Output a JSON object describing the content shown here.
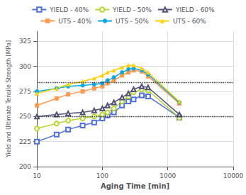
{
  "chart_data": {
    "type": "line",
    "xlabel": "Aging Time [min]",
    "ylabel": "Yield and Ultimate Tensile Strength [MPa]",
    "log": "x",
    "grid": true,
    "legend": "top",
    "xlim": [
      10,
      10000
    ],
    "ylim": [
      200,
      335
    ],
    "xticks": [
      10,
      100,
      1000,
      10000
    ],
    "yticks": [
      200,
      225,
      250,
      275,
      300,
      325
    ],
    "reference_lines": [
      {
        "y": 284,
        "line_style": "dotted"
      },
      {
        "y": 250,
        "line_style": "dotted"
      }
    ],
    "series": [
      {
        "name": "YIELD - 40%",
        "marker": "open_square",
        "x": [
          10,
          20,
          30,
          50,
          75,
          100,
          120,
          150,
          200,
          250,
          300,
          400,
          500,
          1500
        ],
        "values": [
          225,
          232,
          237,
          241,
          244,
          248,
          251,
          254,
          261,
          265,
          267,
          271,
          270,
          249
        ]
      },
      {
        "name": "YIELD - 50%",
        "marker": "open_circle",
        "x": [
          10,
          20,
          30,
          50,
          75,
          100,
          120,
          150,
          200,
          250,
          300,
          400,
          500,
          1500
        ],
        "values": [
          238,
          243,
          246,
          248,
          250,
          252,
          254,
          258,
          265,
          270,
          274,
          277,
          276,
          249
        ]
      },
      {
        "name": "YIELD - 60%",
        "marker": "open_triangle",
        "x": [
          10,
          20,
          30,
          50,
          75,
          100,
          120,
          150,
          200,
          250,
          300,
          400,
          500,
          1500
        ],
        "values": [
          250,
          252,
          253,
          254,
          256,
          258,
          261,
          264,
          269,
          273,
          277,
          280,
          279,
          252
        ]
      },
      {
        "name": "UTS - 40%",
        "marker": "square",
        "x": [
          10,
          20,
          30,
          50,
          75,
          100,
          120,
          150,
          200,
          250,
          300,
          400,
          500,
          1500
        ],
        "values": [
          261,
          268,
          272,
          275,
          278,
          280,
          283,
          286,
          291,
          294,
          296,
          295,
          290,
          263
        ]
      },
      {
        "name": "UTS - 50%",
        "marker": "circle",
        "x": [
          10,
          20,
          30,
          50,
          75,
          100,
          120,
          150,
          200,
          250,
          300,
          400,
          500,
          1500
        ],
        "values": [
          275,
          278,
          280,
          281,
          282,
          283,
          286,
          289,
          294,
          297,
          298,
          296,
          292,
          264
        ]
      },
      {
        "name": "UTS - 60%",
        "marker": "triangle",
        "x": [
          10,
          20,
          30,
          50,
          75,
          100,
          120,
          150,
          200,
          250,
          300,
          400,
          500,
          1500
        ],
        "values": [
          273,
          278,
          282,
          285,
          288,
          291,
          294,
          296,
          299,
          301,
          301,
          298,
          294,
          265
        ]
      }
    ]
  }
}
